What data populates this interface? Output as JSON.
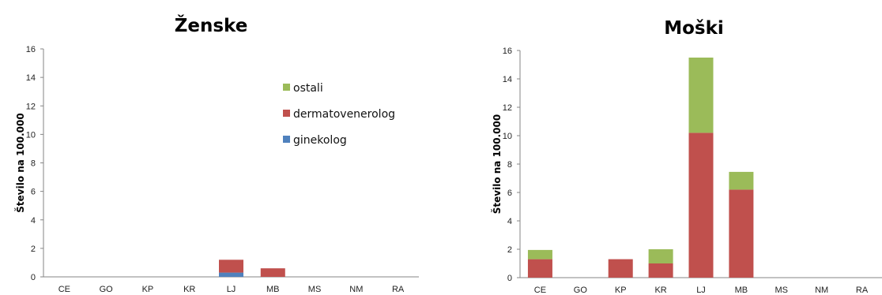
{
  "chart_data": [
    {
      "type": "bar",
      "stacked": true,
      "title": "Ženske",
      "ylabel": "Število na 100.000",
      "xlabel": "",
      "categories": [
        "CE",
        "GO",
        "KP",
        "KR",
        "LJ",
        "MB",
        "MS",
        "NM",
        "RA"
      ],
      "ylim": [
        0,
        16
      ],
      "yticks": [
        "0",
        "2",
        "4",
        "6",
        "8",
        "10",
        "12",
        "14",
        "16"
      ],
      "grid": false,
      "legend_position": "right",
      "series": [
        {
          "name": "ginekolog",
          "color": "#4F81BD",
          "values": [
            0,
            0,
            0,
            0,
            0.3,
            0,
            0,
            0,
            0
          ]
        },
        {
          "name": "dermatovenerolog",
          "color": "#C0504D",
          "values": [
            0,
            0,
            0,
            0,
            0.9,
            0.6,
            0,
            0,
            0
          ]
        },
        {
          "name": "ostali",
          "color": "#9BBB59",
          "values": [
            0,
            0,
            0,
            0,
            0,
            0,
            0,
            0,
            0
          ]
        }
      ],
      "legend_order": [
        "ostali",
        "dermatovenerolog",
        "ginekolog"
      ]
    },
    {
      "type": "bar",
      "stacked": true,
      "title": "Moški",
      "ylabel": "Število na 100.000",
      "xlabel": "",
      "categories": [
        "CE",
        "GO",
        "KP",
        "KR",
        "LJ",
        "MB",
        "MS",
        "NM",
        "RA"
      ],
      "ylim": [
        0,
        16
      ],
      "yticks": [
        "0",
        "2",
        "4",
        "6",
        "8",
        "10",
        "12",
        "14",
        "16"
      ],
      "grid": false,
      "series": [
        {
          "color": "#4F81BD",
          "values": [
            0,
            0,
            0,
            0,
            0,
            0,
            0,
            0,
            0
          ]
        },
        {
          "color": "#C0504D",
          "values": [
            1.3,
            0,
            1.3,
            1.0,
            10.2,
            6.2,
            0,
            0,
            0
          ]
        },
        {
          "color": "#9BBB59",
          "values": [
            0.65,
            0,
            0,
            1.0,
            5.3,
            1.25,
            0,
            0,
            0
          ]
        }
      ]
    }
  ]
}
